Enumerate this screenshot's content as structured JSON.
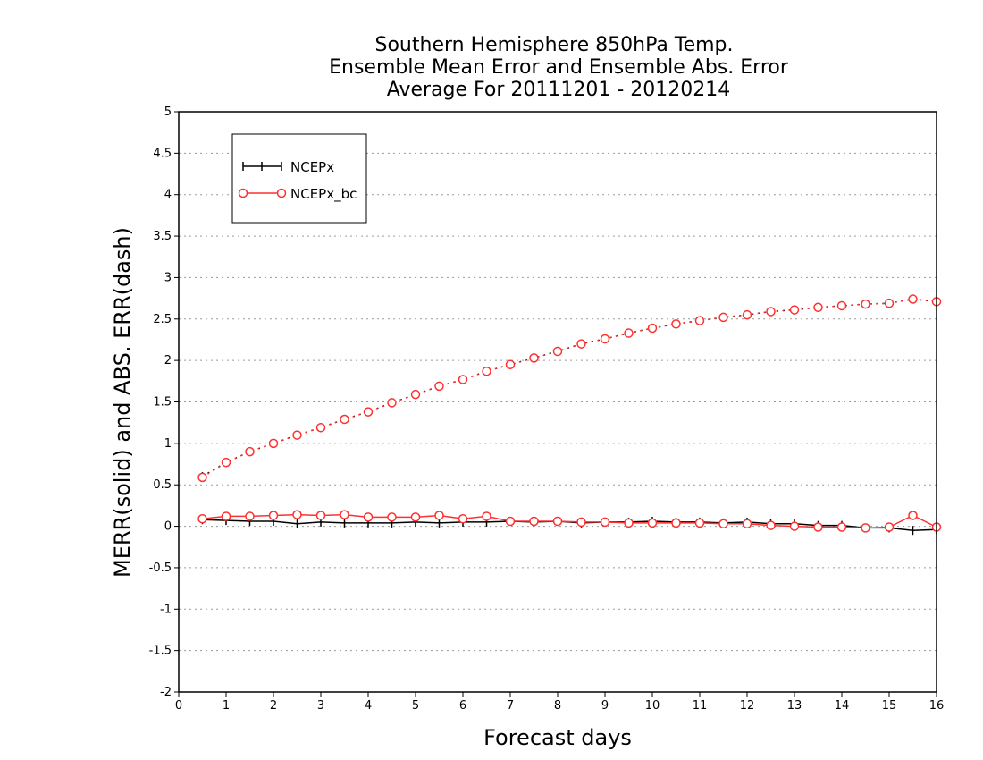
{
  "chart_data": {
    "type": "line",
    "title": [
      "Southern Hemisphere 850hPa Temp.",
      "Ensemble Mean Error and Ensemble Abs. Error",
      "Average For 20111201 - 20120214"
    ],
    "xlabel": "Forecast days",
    "ylabel": "MERR(solid) and ABS. ERR(dash)",
    "xlim": [
      0,
      16
    ],
    "ylim": [
      -2,
      5
    ],
    "xticks": [
      0,
      1,
      2,
      3,
      4,
      5,
      6,
      7,
      8,
      9,
      10,
      11,
      12,
      13,
      14,
      15,
      16
    ],
    "yticks": [
      -2,
      -1.5,
      -1,
      -0.5,
      0,
      0.5,
      1,
      1.5,
      2,
      2.5,
      3,
      3.5,
      4,
      4.5,
      5
    ],
    "grid": "horizontal dotted",
    "legend_position": "top-left",
    "x": [
      0.5,
      1,
      1.5,
      2,
      2.5,
      3,
      3.5,
      4,
      4.5,
      5,
      5.5,
      6,
      6.5,
      7,
      7.5,
      8,
      8.5,
      9,
      9.5,
      10,
      10.5,
      11,
      11.5,
      12,
      12.5,
      13,
      13.5,
      14,
      14.5,
      15,
      15.5,
      16
    ],
    "series": [
      {
        "name": "NCEPx",
        "metric": "MERR",
        "style": "solid",
        "marker": "plus",
        "color": "#000000",
        "values": [
          0.08,
          0.07,
          0.06,
          0.06,
          0.03,
          0.05,
          0.04,
          0.04,
          0.04,
          0.05,
          0.04,
          0.05,
          0.05,
          0.06,
          0.05,
          0.06,
          0.04,
          0.05,
          0.05,
          0.06,
          0.05,
          0.05,
          0.04,
          0.05,
          0.03,
          0.03,
          0.01,
          0.01,
          -0.02,
          -0.02,
          -0.05,
          -0.04
        ]
      },
      {
        "name": "NCEPx_bc",
        "metric": "MERR",
        "style": "solid",
        "marker": "circle",
        "color": "#ff3030",
        "values": [
          0.09,
          0.12,
          0.12,
          0.13,
          0.14,
          0.13,
          0.14,
          0.11,
          0.11,
          0.11,
          0.13,
          0.09,
          0.12,
          0.06,
          0.06,
          0.06,
          0.05,
          0.05,
          0.04,
          0.04,
          0.04,
          0.04,
          0.03,
          0.03,
          0.01,
          0.0,
          -0.01,
          -0.01,
          -0.02,
          -0.01,
          0.13,
          -0.01
        ]
      },
      {
        "name": "NCEPx",
        "metric": "ABS. ERR",
        "style": "dash",
        "marker": "plus",
        "color": "#000000",
        "values": [
          0.6,
          0.77,
          0.9,
          1.0,
          1.1,
          1.19,
          1.29,
          1.38,
          1.49,
          1.59,
          1.69,
          1.77,
          1.87,
          1.95,
          2.03,
          2.11,
          2.2,
          2.26,
          2.33,
          2.39,
          2.44,
          2.48,
          2.52,
          2.55,
          2.59,
          2.61,
          2.64,
          2.66,
          2.68,
          2.69,
          2.74,
          2.71
        ]
      },
      {
        "name": "NCEPx_bc",
        "metric": "ABS. ERR",
        "style": "dash",
        "marker": "circle",
        "color": "#ff3030",
        "values": [
          0.59,
          0.77,
          0.9,
          1.0,
          1.1,
          1.19,
          1.29,
          1.38,
          1.49,
          1.59,
          1.69,
          1.77,
          1.87,
          1.95,
          2.03,
          2.11,
          2.2,
          2.26,
          2.33,
          2.39,
          2.44,
          2.48,
          2.52,
          2.55,
          2.59,
          2.61,
          2.64,
          2.66,
          2.68,
          2.69,
          2.74,
          2.71
        ]
      }
    ]
  }
}
